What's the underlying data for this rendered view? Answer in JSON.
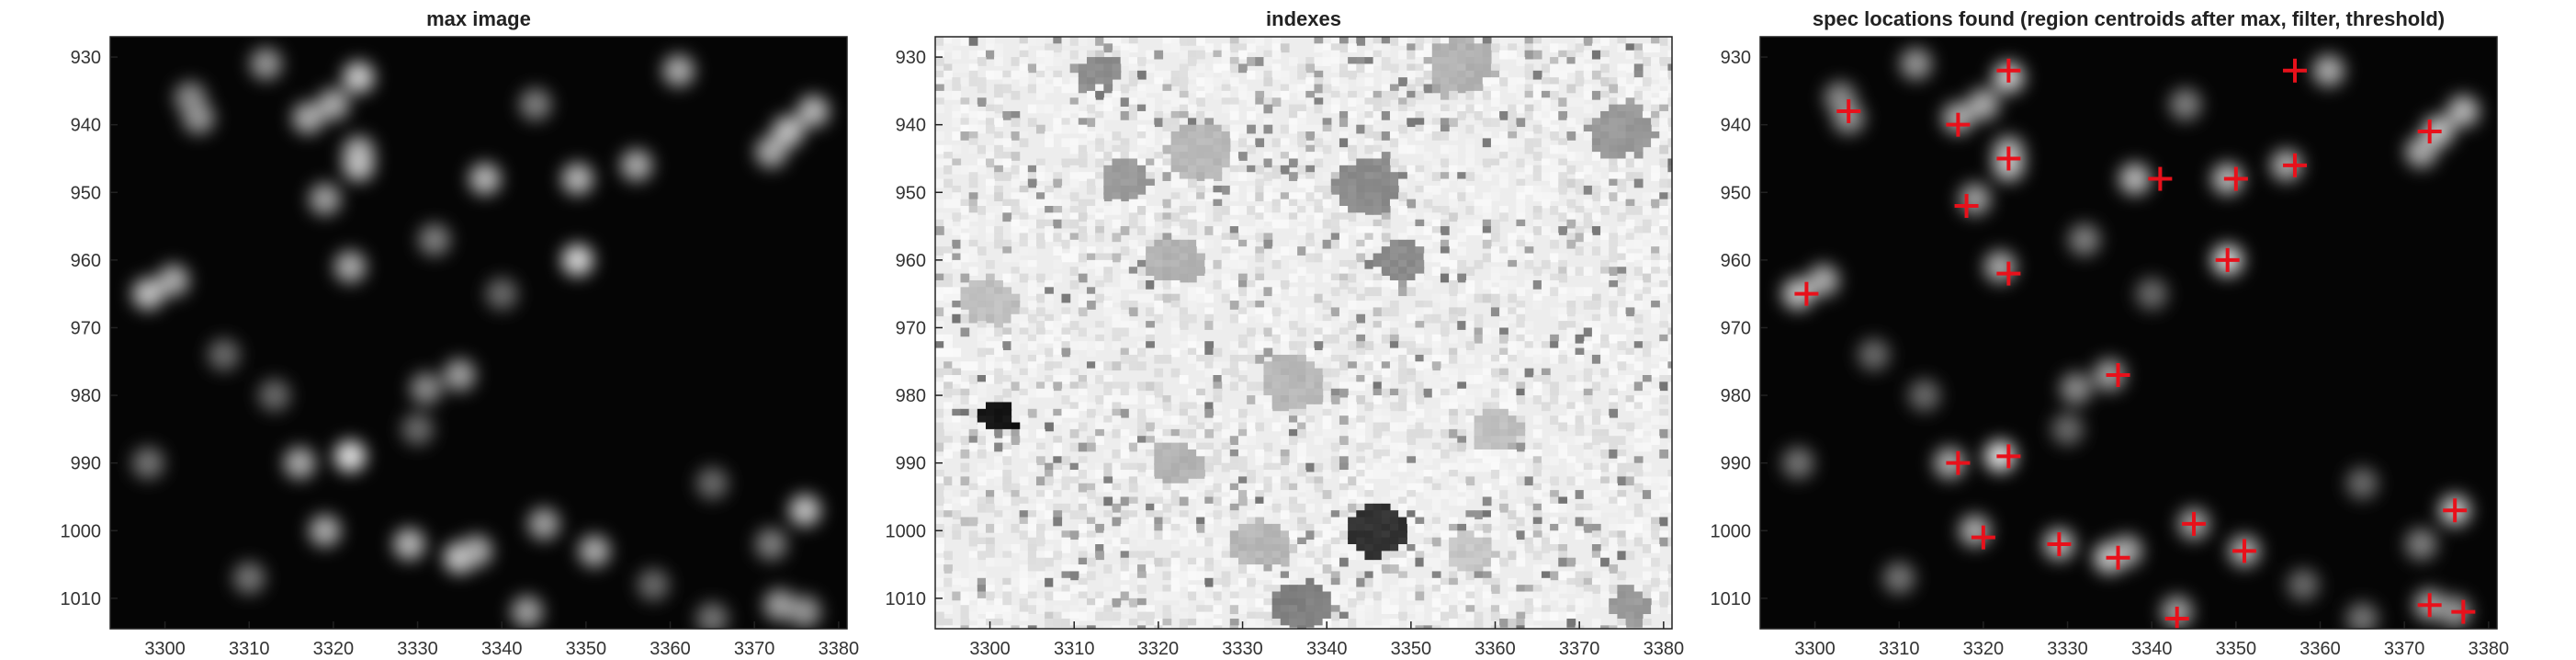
{
  "chart_data": [
    {
      "type": "heatmap",
      "title": "max image",
      "colormap": "gray",
      "xlim": [
        3293.5,
        3381
      ],
      "ylim": [
        927,
        1014.5
      ],
      "xticks": [
        3300,
        3310,
        3320,
        3330,
        3340,
        3350,
        3360,
        3370,
        3380
      ],
      "yticks": [
        930,
        940,
        950,
        960,
        970,
        980,
        990,
        1000,
        1010
      ],
      "blobs": [
        {
          "x": 3303,
          "y": 936,
          "i": 0.45
        },
        {
          "x": 3304,
          "y": 939,
          "i": 0.5
        },
        {
          "x": 3317,
          "y": 939,
          "i": 0.6
        },
        {
          "x": 3320,
          "y": 937,
          "i": 0.6
        },
        {
          "x": 3323,
          "y": 933,
          "i": 0.75
        },
        {
          "x": 3323,
          "y": 944,
          "i": 0.6
        },
        {
          "x": 3323,
          "y": 946,
          "i": 0.7
        },
        {
          "x": 3312,
          "y": 931,
          "i": 0.5
        },
        {
          "x": 3319,
          "y": 951,
          "i": 0.55
        },
        {
          "x": 3338,
          "y": 948,
          "i": 0.65
        },
        {
          "x": 3349,
          "y": 948,
          "i": 0.65
        },
        {
          "x": 3356,
          "y": 946,
          "i": 0.6
        },
        {
          "x": 3361,
          "y": 932,
          "i": 0.6
        },
        {
          "x": 3344,
          "y": 937,
          "i": 0.4
        },
        {
          "x": 3374,
          "y": 941,
          "i": 0.7
        },
        {
          "x": 3377,
          "y": 938,
          "i": 0.65
        },
        {
          "x": 3372,
          "y": 944,
          "i": 0.6
        },
        {
          "x": 3349,
          "y": 960,
          "i": 0.8
        },
        {
          "x": 3322,
          "y": 961,
          "i": 0.6
        },
        {
          "x": 3298,
          "y": 965,
          "i": 0.7
        },
        {
          "x": 3301,
          "y": 963,
          "i": 0.6
        },
        {
          "x": 3332,
          "y": 957,
          "i": 0.4
        },
        {
          "x": 3335,
          "y": 977,
          "i": 0.55
        },
        {
          "x": 3331,
          "y": 979,
          "i": 0.45
        },
        {
          "x": 3316,
          "y": 990,
          "i": 0.6
        },
        {
          "x": 3322,
          "y": 989,
          "i": 0.85
        },
        {
          "x": 3319,
          "y": 1000,
          "i": 0.6
        },
        {
          "x": 3329,
          "y": 1002,
          "i": 0.65
        },
        {
          "x": 3335,
          "y": 1004,
          "i": 0.75
        },
        {
          "x": 3337,
          "y": 1003,
          "i": 0.6
        },
        {
          "x": 3345,
          "y": 999,
          "i": 0.55
        },
        {
          "x": 3351,
          "y": 1003,
          "i": 0.6
        },
        {
          "x": 3343,
          "y": 1012,
          "i": 0.55
        },
        {
          "x": 3373,
          "y": 1011,
          "i": 0.55
        },
        {
          "x": 3376,
          "y": 1012,
          "i": 0.5
        },
        {
          "x": 3376,
          "y": 997,
          "i": 0.7
        },
        {
          "x": 3372,
          "y": 1002,
          "i": 0.4
        },
        {
          "x": 3307,
          "y": 974,
          "i": 0.3
        },
        {
          "x": 3298,
          "y": 990,
          "i": 0.35
        },
        {
          "x": 3313,
          "y": 980,
          "i": 0.3
        },
        {
          "x": 3330,
          "y": 985,
          "i": 0.3
        },
        {
          "x": 3340,
          "y": 965,
          "i": 0.3
        },
        {
          "x": 3365,
          "y": 993,
          "i": 0.3
        },
        {
          "x": 3310,
          "y": 1007,
          "i": 0.35
        },
        {
          "x": 3358,
          "y": 1008,
          "i": 0.3
        },
        {
          "x": 3365,
          "y": 1013,
          "i": 0.35
        }
      ]
    },
    {
      "type": "heatmap",
      "title": "indexes",
      "colormap": "gray",
      "xlim": [
        3293.5,
        3381
      ],
      "ylim": [
        927,
        1014.5
      ],
      "xticks": [
        3300,
        3310,
        3320,
        3330,
        3340,
        3350,
        3360,
        3370,
        3380
      ],
      "yticks": [
        930,
        940,
        950,
        960,
        970,
        980,
        990,
        1000,
        1010
      ],
      "regions": [
        {
          "x": 3301,
          "y": 983,
          "r": 2.2,
          "v": 0.08
        },
        {
          "x": 3346,
          "y": 1000,
          "r": 3.6,
          "v": 0.2
        },
        {
          "x": 3345,
          "y": 949,
          "r": 4,
          "v": 0.55
        },
        {
          "x": 3325,
          "y": 944,
          "r": 4,
          "v": 0.72
        },
        {
          "x": 3322,
          "y": 960,
          "r": 3.5,
          "v": 0.7
        },
        {
          "x": 3316,
          "y": 948,
          "r": 3,
          "v": 0.6
        },
        {
          "x": 3300,
          "y": 966,
          "r": 3.5,
          "v": 0.75
        },
        {
          "x": 3313,
          "y": 932,
          "r": 2.5,
          "v": 0.55
        },
        {
          "x": 3336,
          "y": 978,
          "r": 4,
          "v": 0.72
        },
        {
          "x": 3375,
          "y": 941,
          "r": 4,
          "v": 0.6
        },
        {
          "x": 3356,
          "y": 931,
          "r": 4,
          "v": 0.7
        },
        {
          "x": 3349,
          "y": 960,
          "r": 3,
          "v": 0.55
        },
        {
          "x": 3337,
          "y": 1011,
          "r": 3.5,
          "v": 0.5
        },
        {
          "x": 3376,
          "y": 1011,
          "r": 2.5,
          "v": 0.6
        },
        {
          "x": 3360,
          "y": 985,
          "r": 3,
          "v": 0.75
        },
        {
          "x": 3322,
          "y": 990,
          "r": 3,
          "v": 0.7
        },
        {
          "x": 3332,
          "y": 1002,
          "r": 3.5,
          "v": 0.72
        },
        {
          "x": 3357,
          "y": 1003,
          "r": 3,
          "v": 0.78
        }
      ]
    },
    {
      "type": "heatmap",
      "title": "spec locations found (region centroids after max, filter, threshold)",
      "colormap": "gray",
      "xlim": [
        3293.5,
        3381
      ],
      "ylim": [
        927,
        1014.5
      ],
      "xticks": [
        3300,
        3310,
        3320,
        3330,
        3340,
        3350,
        3360,
        3370,
        3380
      ],
      "yticks": [
        930,
        940,
        950,
        960,
        970,
        980,
        990,
        1000,
        1010
      ],
      "blobs": [
        {
          "x": 3303,
          "y": 936,
          "i": 0.45
        },
        {
          "x": 3304,
          "y": 939,
          "i": 0.5
        },
        {
          "x": 3317,
          "y": 939,
          "i": 0.6
        },
        {
          "x": 3320,
          "y": 937,
          "i": 0.6
        },
        {
          "x": 3323,
          "y": 933,
          "i": 0.75
        },
        {
          "x": 3323,
          "y": 944,
          "i": 0.6
        },
        {
          "x": 3323,
          "y": 946,
          "i": 0.7
        },
        {
          "x": 3312,
          "y": 931,
          "i": 0.5
        },
        {
          "x": 3319,
          "y": 951,
          "i": 0.55
        },
        {
          "x": 3338,
          "y": 948,
          "i": 0.65
        },
        {
          "x": 3349,
          "y": 948,
          "i": 0.65
        },
        {
          "x": 3356,
          "y": 946,
          "i": 0.6
        },
        {
          "x": 3361,
          "y": 932,
          "i": 0.6
        },
        {
          "x": 3344,
          "y": 937,
          "i": 0.4
        },
        {
          "x": 3374,
          "y": 941,
          "i": 0.7
        },
        {
          "x": 3377,
          "y": 938,
          "i": 0.65
        },
        {
          "x": 3372,
          "y": 944,
          "i": 0.6
        },
        {
          "x": 3349,
          "y": 960,
          "i": 0.8
        },
        {
          "x": 3322,
          "y": 961,
          "i": 0.6
        },
        {
          "x": 3298,
          "y": 965,
          "i": 0.7
        },
        {
          "x": 3301,
          "y": 963,
          "i": 0.6
        },
        {
          "x": 3332,
          "y": 957,
          "i": 0.4
        },
        {
          "x": 3335,
          "y": 977,
          "i": 0.55
        },
        {
          "x": 3331,
          "y": 979,
          "i": 0.45
        },
        {
          "x": 3316,
          "y": 990,
          "i": 0.6
        },
        {
          "x": 3322,
          "y": 989,
          "i": 0.85
        },
        {
          "x": 3319,
          "y": 1000,
          "i": 0.6
        },
        {
          "x": 3329,
          "y": 1002,
          "i": 0.65
        },
        {
          "x": 3335,
          "y": 1004,
          "i": 0.75
        },
        {
          "x": 3337,
          "y": 1003,
          "i": 0.6
        },
        {
          "x": 3345,
          "y": 999,
          "i": 0.55
        },
        {
          "x": 3351,
          "y": 1003,
          "i": 0.6
        },
        {
          "x": 3343,
          "y": 1012,
          "i": 0.55
        },
        {
          "x": 3373,
          "y": 1011,
          "i": 0.55
        },
        {
          "x": 3376,
          "y": 1012,
          "i": 0.5
        },
        {
          "x": 3376,
          "y": 997,
          "i": 0.7
        },
        {
          "x": 3372,
          "y": 1002,
          "i": 0.4
        },
        {
          "x": 3307,
          "y": 974,
          "i": 0.3
        },
        {
          "x": 3298,
          "y": 990,
          "i": 0.35
        },
        {
          "x": 3313,
          "y": 980,
          "i": 0.3
        },
        {
          "x": 3330,
          "y": 985,
          "i": 0.3
        },
        {
          "x": 3340,
          "y": 965,
          "i": 0.3
        },
        {
          "x": 3365,
          "y": 993,
          "i": 0.3
        },
        {
          "x": 3310,
          "y": 1007,
          "i": 0.35
        },
        {
          "x": 3358,
          "y": 1008,
          "i": 0.3
        },
        {
          "x": 3365,
          "y": 1013,
          "i": 0.35
        }
      ],
      "marker": "+",
      "marker_color": "#e8111b",
      "points": [
        {
          "x": 3304,
          "y": 938
        },
        {
          "x": 3317,
          "y": 940
        },
        {
          "x": 3323,
          "y": 932
        },
        {
          "x": 3357,
          "y": 932
        },
        {
          "x": 3373,
          "y": 941
        },
        {
          "x": 3323,
          "y": 945
        },
        {
          "x": 3341,
          "y": 948
        },
        {
          "x": 3350,
          "y": 948
        },
        {
          "x": 3357,
          "y": 946
        },
        {
          "x": 3318,
          "y": 952
        },
        {
          "x": 3349,
          "y": 960
        },
        {
          "x": 3323,
          "y": 962
        },
        {
          "x": 3299,
          "y": 965
        },
        {
          "x": 3336,
          "y": 977
        },
        {
          "x": 3317,
          "y": 990
        },
        {
          "x": 3323,
          "y": 989
        },
        {
          "x": 3376,
          "y": 997
        },
        {
          "x": 3320,
          "y": 1001
        },
        {
          "x": 3329,
          "y": 1002
        },
        {
          "x": 3345,
          "y": 999
        },
        {
          "x": 3351,
          "y": 1003
        },
        {
          "x": 3336,
          "y": 1004
        },
        {
          "x": 3343,
          "y": 1013
        },
        {
          "x": 3373,
          "y": 1011
        },
        {
          "x": 3377,
          "y": 1012
        }
      ]
    }
  ]
}
